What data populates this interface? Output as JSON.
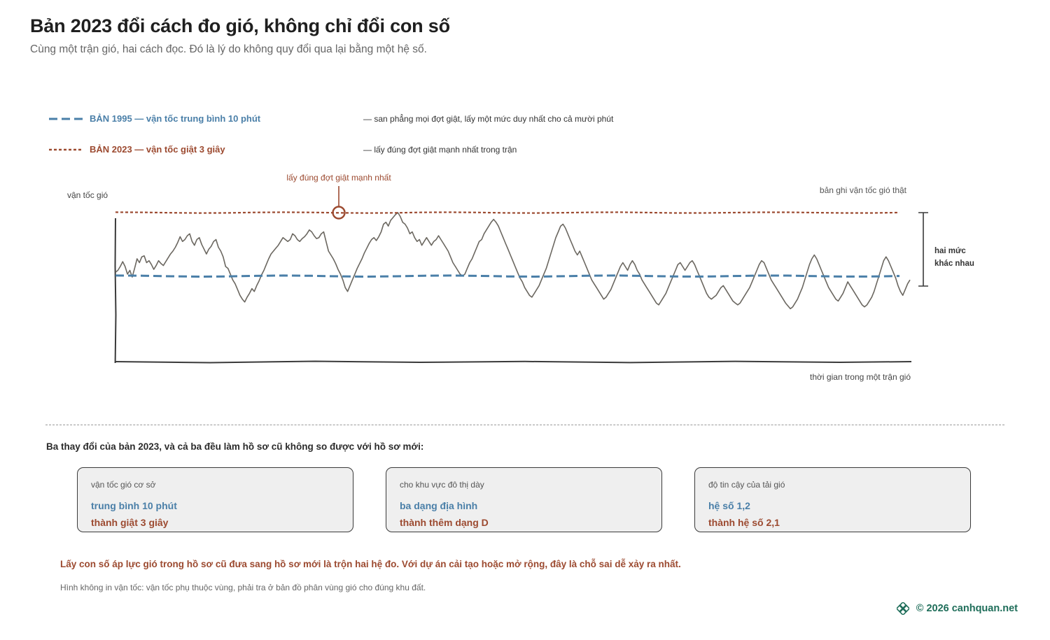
{
  "header": {
    "title": "Bản 2023 đổi cách đo gió, không chỉ đổi con số",
    "subtitle": "Cùng một trận gió, hai cách đọc. Đó là lý do không quy đổi qua lại bằng một hệ số."
  },
  "legend": {
    "items": [
      {
        "label": "BẢN 1995 — vận tốc trung bình 10 phút",
        "note": "— san phẳng mọi đợt giật, lấy một mức duy nhất cho cả mười phút",
        "color": "#4a7fa8",
        "style": "long-dash"
      },
      {
        "label": "BẢN 2023 — vận tốc giật 3 giây",
        "note": "— lấy đúng đợt giật mạnh nhất trong trận",
        "color": "#9c4a30",
        "style": "short-dash"
      }
    ]
  },
  "chart_labels": {
    "y_axis": "vận tốc gió",
    "x_axis": "thời gian trong một trận gió",
    "record_label": "bản ghi vận tốc gió thật",
    "peak_annotation": "lấy đúng đợt giật mạnh nhất",
    "gap_annotation_line1": "hai mức",
    "gap_annotation_line2": "khác nhau"
  },
  "chart_data": {
    "type": "line",
    "xlabel": "thời gian trong một trận gió",
    "ylabel": "vận tốc gió",
    "series": [
      {
        "name": "bản ghi vận tốc gió thật",
        "values": [
          0.38,
          0.4,
          0.44,
          0.49,
          0.44,
          0.36,
          0.4,
          0.33,
          0.42,
          0.52,
          0.48,
          0.54,
          0.55,
          0.48,
          0.5,
          0.46,
          0.41,
          0.45,
          0.5,
          0.47,
          0.45,
          0.49,
          0.53,
          0.57,
          0.6,
          0.64,
          0.69,
          0.75,
          0.7,
          0.72,
          0.76,
          0.78,
          0.7,
          0.66,
          0.72,
          0.74,
          0.67,
          0.62,
          0.57,
          0.62,
          0.65,
          0.7,
          0.72,
          0.64,
          0.6,
          0.54,
          0.44,
          0.42,
          0.36,
          0.3,
          0.26,
          0.2,
          0.14,
          0.1,
          0.07,
          0.12,
          0.16,
          0.21,
          0.18,
          0.24,
          0.29,
          0.35,
          0.4,
          0.46,
          0.52,
          0.57,
          0.6,
          0.63,
          0.66,
          0.7,
          0.74,
          0.72,
          0.7,
          0.72,
          0.78,
          0.76,
          0.72,
          0.7,
          0.73,
          0.75,
          0.78,
          0.82,
          0.8,
          0.76,
          0.73,
          0.74,
          0.78,
          0.8,
          0.7,
          0.6,
          0.56,
          0.52,
          0.47,
          0.41,
          0.36,
          0.3,
          0.22,
          0.18,
          0.24,
          0.3,
          0.36,
          0.42,
          0.47,
          0.52,
          0.58,
          0.63,
          0.68,
          0.72,
          0.74,
          0.71,
          0.75,
          0.8,
          0.88,
          0.9,
          0.86,
          0.92,
          0.95,
          0.98,
          1.0,
          0.96,
          0.9,
          0.88,
          0.84,
          0.78,
          0.8,
          0.74,
          0.7,
          0.72,
          0.66,
          0.7,
          0.74,
          0.7,
          0.66,
          0.7,
          0.72,
          0.76,
          0.72,
          0.68,
          0.64,
          0.6,
          0.54,
          0.48,
          0.44,
          0.4,
          0.36,
          0.34,
          0.36,
          0.42,
          0.48,
          0.52,
          0.58,
          0.64,
          0.7,
          0.72,
          0.78,
          0.82,
          0.86,
          0.9,
          0.93,
          0.9,
          0.86,
          0.8,
          0.74,
          0.68,
          0.62,
          0.56,
          0.5,
          0.44,
          0.38,
          0.32,
          0.28,
          0.22,
          0.18,
          0.14,
          0.12,
          0.16,
          0.2,
          0.24,
          0.3,
          0.36,
          0.42,
          0.5,
          0.58,
          0.66,
          0.74,
          0.8,
          0.86,
          0.88,
          0.84,
          0.78,
          0.72,
          0.66,
          0.6,
          0.56,
          0.6,
          0.54,
          0.48,
          0.42,
          0.36,
          0.3,
          0.26,
          0.22,
          0.18,
          0.14,
          0.1,
          0.12,
          0.16,
          0.2,
          0.26,
          0.32,
          0.38,
          0.44,
          0.48,
          0.44,
          0.4,
          0.46,
          0.5,
          0.46,
          0.4,
          0.36,
          0.3,
          0.26,
          0.22,
          0.18,
          0.14,
          0.1,
          0.06,
          0.04,
          0.08,
          0.12,
          0.16,
          0.22,
          0.28,
          0.34,
          0.4,
          0.46,
          0.48,
          0.44,
          0.4,
          0.44,
          0.48,
          0.5,
          0.46,
          0.4,
          0.34,
          0.28,
          0.22,
          0.16,
          0.12,
          0.1,
          0.12,
          0.14,
          0.18,
          0.22,
          0.24,
          0.2,
          0.16,
          0.12,
          0.08,
          0.06,
          0.04,
          0.06,
          0.1,
          0.14,
          0.18,
          0.22,
          0.28,
          0.34,
          0.4,
          0.46,
          0.5,
          0.48,
          0.42,
          0.36,
          0.3,
          0.26,
          0.22,
          0.18,
          0.14,
          0.1,
          0.06,
          0.03,
          0.0,
          0.02,
          0.06,
          0.1,
          0.16,
          0.22,
          0.3,
          0.38,
          0.46,
          0.52,
          0.56,
          0.52,
          0.46,
          0.4,
          0.34,
          0.28,
          0.22,
          0.18,
          0.14,
          0.1,
          0.08,
          0.12,
          0.16,
          0.22,
          0.28,
          0.24,
          0.2,
          0.16,
          0.12,
          0.08,
          0.04,
          0.02,
          0.04,
          0.08,
          0.12,
          0.18,
          0.26,
          0.34,
          0.42,
          0.5,
          0.54,
          0.5,
          0.44,
          0.38,
          0.32,
          0.24,
          0.18,
          0.14,
          0.2,
          0.26,
          0.3
        ]
      },
      {
        "name": "BẢN 1995 — vận tốc trung bình 10 phút",
        "values": [
          0.34
        ]
      },
      {
        "name": "BẢN 2023 — vận tốc giật 3 giây",
        "values": [
          1.0
        ]
      }
    ],
    "ylim": [
      -0.55,
      1.0
    ],
    "grid": false
  },
  "changes": {
    "intro": "Ba thay đổi của bản 2023, và cả ba đều làm hồ sơ cũ không so được với hồ sơ mới:",
    "cards": [
      {
        "label": "vận tốc gió cơ sở",
        "old": "trung bình 10 phút",
        "new": "thành giật 3 giây"
      },
      {
        "label": "cho khu vực đô thị dày",
        "old": "ba dạng địa hình",
        "new": "thành thêm dạng D"
      },
      {
        "label": "độ tin cậy của tải gió",
        "old": "hệ số 1,2",
        "new": "thành hệ số 2,1"
      }
    ]
  },
  "footer": {
    "warning": "Lấy con số áp lực gió trong hồ sơ cũ đưa sang hồ sơ mới là trộn hai hệ đo. Với dự án cải tạo hoặc mở rộng, đây là chỗ sai dễ xảy ra nhất.",
    "footnote": "Hình không in vận tốc: vận tốc phụ thuộc vùng, phải tra ở bản đồ phân vùng gió cho đúng khu đất.",
    "copyright": "© 2026 canhquan.net"
  },
  "colors": {
    "blue": "#4a7fa8",
    "rust": "#9c4a30",
    "record": "#6b6760",
    "axis": "#3a3a3a",
    "brand": "#1f6e5a"
  }
}
